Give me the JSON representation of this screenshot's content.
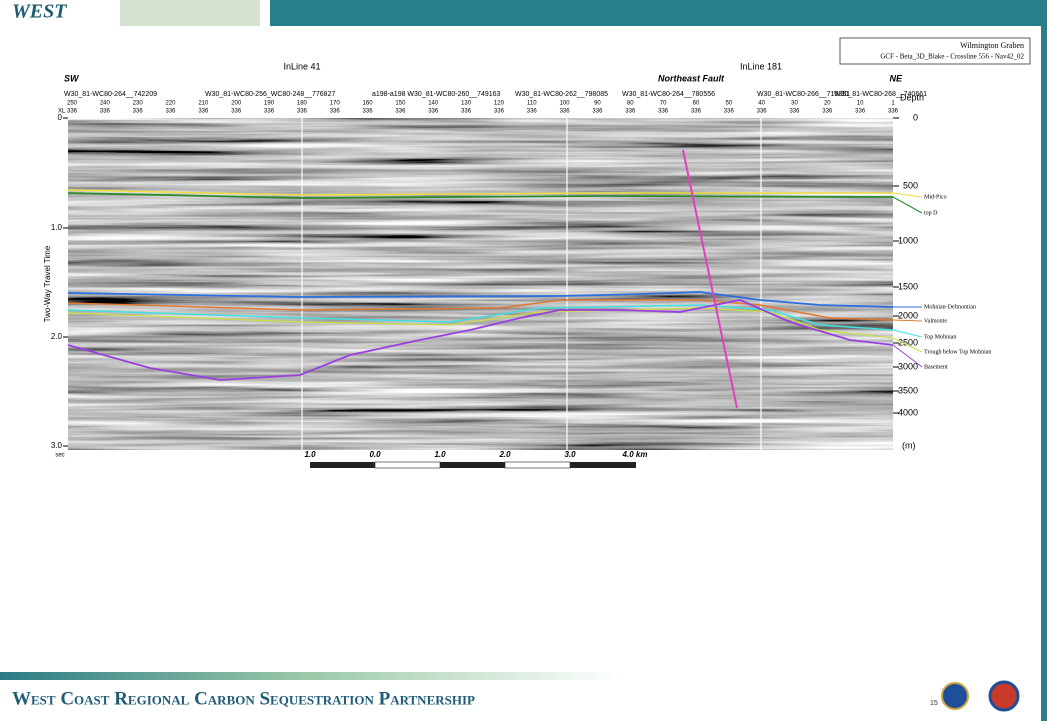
{
  "header": {
    "logo": "WEST"
  },
  "figure": {
    "box_title": "Wilmington Graben",
    "box_subtitle": "GCF - Beta_3D_Blake - Crossline 556 - Nav42_02",
    "inline_left": "InLine 41",
    "inline_right": "InLine 181",
    "sw": "SW",
    "ne": "NE",
    "fault": "Northeast Fault",
    "wells": [
      "W30_81-WC80-264__742209",
      "W30_81-WC80-256_WC80-248__776827",
      "a198-a198 W30_81-WC80-260__749163",
      "W30_81-WC80-262__798085",
      "W30_81-WC80-264__780556",
      "W30_81-WC80-266__715351",
      "W30_81-WC80-268__740661"
    ],
    "xl_label": "XL",
    "xl_numbers": [
      "250",
      "240",
      "230",
      "220",
      "210",
      "200",
      "190",
      "180",
      "170",
      "160",
      "150",
      "140",
      "130",
      "120",
      "110",
      "100",
      "90",
      "80",
      "70",
      "60",
      "50",
      "40",
      "30",
      "20",
      "10",
      "1"
    ],
    "il_number": "336",
    "time_axis_title": "Two-Way Travel Time",
    "time_ticks": [
      "0",
      "1.0",
      "2.0",
      "3.0"
    ],
    "time_unit": "sec",
    "depth_title": "Depth",
    "depth_ticks": [
      "0",
      "500",
      "1000",
      "1500",
      "2000",
      "2500",
      "3000",
      "3500",
      "4000"
    ],
    "depth_unit": "(m)",
    "horizons": [
      "Mid-Pico",
      "top D",
      "Mohnian-Delmontian",
      "Valmonte",
      "Top Mohnian",
      "Trough below Top Mohnian",
      "Basement"
    ],
    "scale_labels": [
      "1.0",
      "0.0",
      "1.0",
      "2.0",
      "3.0",
      "4.0 km"
    ]
  },
  "footer": {
    "title": "West Coast Regional Carbon Sequestration Partnership",
    "page": "15"
  }
}
